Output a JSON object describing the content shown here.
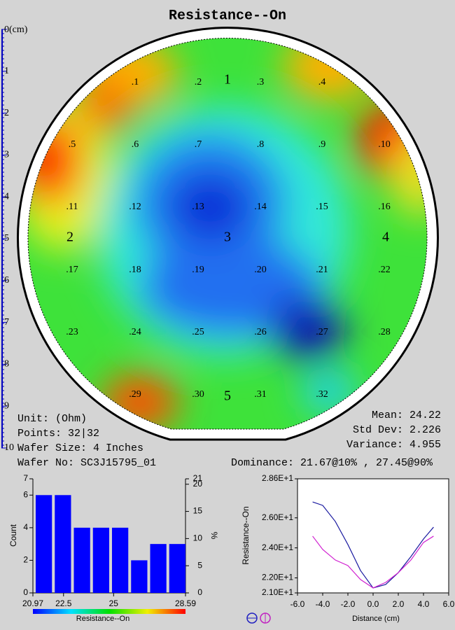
{
  "title": "Resistance--On",
  "ruler": {
    "ticks": [
      {
        "value": 0,
        "label": "0(cm)"
      },
      1,
      2,
      3,
      4,
      5,
      6,
      7,
      8,
      9,
      10
    ]
  },
  "wafer": {
    "sections": [
      "1",
      "2",
      "3",
      "4",
      "5"
    ],
    "points": [
      ".1",
      ".2",
      ".3",
      ".4",
      ".5",
      ".6",
      ".7",
      ".8",
      ".9",
      ".10",
      ".11",
      ".12",
      ".13",
      ".14",
      ".15",
      ".16",
      ".17",
      ".18",
      ".19",
      ".20",
      ".21",
      ".22",
      ".23",
      ".24",
      ".25",
      ".26",
      ".27",
      ".28",
      ".29",
      ".30",
      ".31",
      ".32"
    ]
  },
  "info": {
    "unit": "Unit: (Ohm)",
    "points": "Points: 32|32",
    "wafer_size": "Wafer Size: 4 Inches",
    "wafer_no": "Wafer No: SC3J15795_01",
    "mean": "Mean: 24.22",
    "std_dev": "Std Dev: 2.226",
    "variance": "Variance: 4.955",
    "dominance": "Dominance: 21.67@10% , 27.45@90%"
  },
  "chart_data": [
    {
      "type": "histogram",
      "bins": [
        20.97,
        21.9225,
        22.875,
        23.8275,
        24.78,
        25.7325,
        26.685,
        27.6375,
        28.59
      ],
      "values": [
        6,
        6,
        4,
        4,
        4,
        2,
        3,
        3
      ],
      "color": "#0000ff",
      "xlim": [
        20.97,
        28.59
      ],
      "xticks": [
        20.97,
        22.5,
        25,
        28.59
      ],
      "ylim": [
        0,
        7
      ],
      "yticks": [
        0,
        2,
        4,
        6,
        7
      ],
      "y2lim": [
        0,
        21
      ],
      "y2ticks": [
        0,
        5,
        10,
        15,
        20,
        21
      ],
      "ylabel": "Count",
      "y2label": "%",
      "xlabel": "Resistance--On"
    },
    {
      "type": "line",
      "x": [
        -4.8,
        -4,
        -3,
        -2,
        -1,
        0,
        1,
        2,
        3,
        4,
        4.8
      ],
      "series": [
        {
          "color": "#1a1aa0",
          "values": [
            27.06,
            26.83,
            25.76,
            24.22,
            22.49,
            21.33,
            21.56,
            22.35,
            23.42,
            24.59,
            25.38
          ]
        },
        {
          "color": "#d020d0",
          "values": [
            24.78,
            23.89,
            23.19,
            22.82,
            21.89,
            21.33,
            21.7,
            22.35,
            23.19,
            24.36,
            24.78
          ]
        }
      ],
      "xlim": [
        -6,
        6
      ],
      "xticks": [
        {
          "value": -6,
          "label": "-6.0"
        },
        {
          "value": -4,
          "label": "-4.0"
        },
        {
          "value": -2,
          "label": "-2.0"
        },
        {
          "value": 0,
          "label": "0.0"
        },
        {
          "value": 2,
          "label": "2.0"
        },
        {
          "value": 4,
          "label": "4.0"
        },
        {
          "value": 6,
          "label": "6.0"
        }
      ],
      "ylim": [
        21,
        28.6
      ],
      "yticks": [
        {
          "value": 21,
          "label": "2.10E+1"
        },
        {
          "value": 22,
          "label": "2.20E+1"
        },
        {
          "value": 24,
          "label": "2.40E+1"
        },
        {
          "value": 26,
          "label": "2.60E+1"
        },
        {
          "value": 28.6,
          "label": "2.86E+1"
        }
      ],
      "xlabel": "Distance (cm)",
      "ylabel": "Resistance--On"
    }
  ]
}
